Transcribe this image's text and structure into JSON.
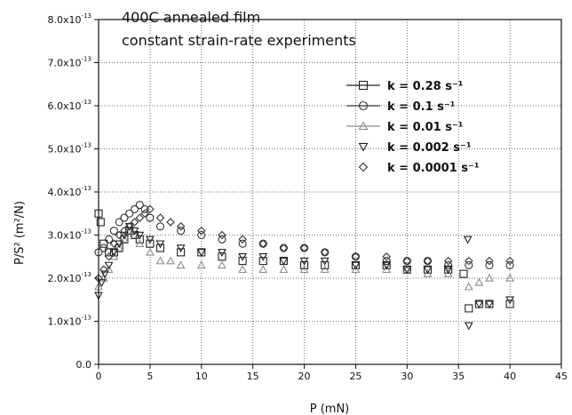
{
  "chart_data": {
    "type": "scatter",
    "title": "400C annealed film",
    "subtitle": "constant strain-rate experiments",
    "xlabel": "P (mN)",
    "ylabel": "P/S² (m²/N)",
    "xlim": [
      0,
      45
    ],
    "ylim": [
      0,
      8e-13
    ],
    "grid": true,
    "legend_position": "top-right",
    "x_ticks": [
      {
        "value": 0,
        "label": "0"
      },
      {
        "value": 5,
        "label": "5"
      },
      {
        "value": 10,
        "label": "10"
      },
      {
        "value": 15,
        "label": "15"
      },
      {
        "value": 20,
        "label": "20"
      },
      {
        "value": 25,
        "label": "25"
      },
      {
        "value": 30,
        "label": "30"
      },
      {
        "value": 35,
        "label": "35"
      },
      {
        "value": 40,
        "label": "40"
      },
      {
        "value": 45,
        "label": "45"
      }
    ],
    "y_ticks": [
      {
        "value": 0,
        "mantissa": "0.0",
        "exp": ""
      },
      {
        "value": 1e-13,
        "mantissa": "1.0x10",
        "exp": "-13"
      },
      {
        "value": 2e-13,
        "mantissa": "2.0x10",
        "exp": "-13"
      },
      {
        "value": 3e-13,
        "mantissa": "3.0x10",
        "exp": "-13"
      },
      {
        "value": 4e-13,
        "mantissa": "4.0x10",
        "exp": "-13"
      },
      {
        "value": 5e-13,
        "mantissa": "5.0x10",
        "exp": "-13"
      },
      {
        "value": 6e-13,
        "mantissa": "6.0x10",
        "exp": "-13"
      },
      {
        "value": 7e-13,
        "mantissa": "7.0x10",
        "exp": "-13"
      },
      {
        "value": 8e-13,
        "mantissa": "8.0x10",
        "exp": "-13"
      }
    ],
    "series": [
      {
        "name": "k = 0.28 s⁻¹",
        "marker": "square",
        "color": "#222222",
        "x": [
          0.0,
          0.2,
          0.5,
          1.0,
          1.5,
          2.0,
          2.5,
          3.0,
          3.5,
          4.0,
          5.0,
          6.0,
          8.0,
          10.0,
          12.0,
          14.0,
          16.0,
          18.0,
          20.0,
          22.0,
          25.0,
          28.0,
          30.0,
          32.0,
          34.0,
          35.5,
          36.0,
          37.0,
          38.0,
          40.0
        ],
        "y": [
          3.5e-13,
          3.3e-13,
          2.8e-13,
          2.6e-13,
          2.6e-13,
          2.7e-13,
          2.9e-13,
          3.1e-13,
          3e-13,
          2.9e-13,
          2.8e-13,
          2.7e-13,
          2.6e-13,
          2.6e-13,
          2.5e-13,
          2.4e-13,
          2.4e-13,
          2.4e-13,
          2.3e-13,
          2.3e-13,
          2.3e-13,
          2.3e-13,
          2.2e-13,
          2.2e-13,
          2.2e-13,
          2.1e-13,
          1.3e-13,
          1.4e-13,
          1.4e-13,
          1.4e-13
        ]
      },
      {
        "name": "k = 0.1 s⁻¹",
        "marker": "circle",
        "color": "#333333",
        "x": [
          0.0,
          0.5,
          1.0,
          1.5,
          2.0,
          2.5,
          3.0,
          3.5,
          4.0,
          4.5,
          5.0,
          6.0,
          8.0,
          10.0,
          12.0,
          14.0,
          16.0,
          18.0,
          20.0,
          22.0,
          25.0,
          28.0,
          30.0,
          32.0,
          34.0,
          36.0,
          38.0,
          40.0
        ],
        "y": [
          2.6e-13,
          2.7e-13,
          2.9e-13,
          3.1e-13,
          3.3e-13,
          3.4e-13,
          3.5e-13,
          3.6e-13,
          3.7e-13,
          3.6e-13,
          3.4e-13,
          3.2e-13,
          3.1e-13,
          3e-13,
          2.9e-13,
          2.8e-13,
          2.8e-13,
          2.7e-13,
          2.7e-13,
          2.6e-13,
          2.5e-13,
          2.4e-13,
          2.4e-13,
          2.4e-13,
          2.3e-13,
          2.3e-13,
          2.3e-13,
          2.3e-13
        ]
      },
      {
        "name": "k = 0.01 s⁻¹",
        "marker": "triangle-up",
        "color": "#8c8c8c",
        "x": [
          0.0,
          0.5,
          1.0,
          1.5,
          2.0,
          2.5,
          3.0,
          3.5,
          4.0,
          5.0,
          6.0,
          7.0,
          8.0,
          10.0,
          12.0,
          14.0,
          16.0,
          18.0,
          20.0,
          22.0,
          25.0,
          28.0,
          30.0,
          32.0,
          34.0,
          36.0,
          37.0,
          38.0,
          40.0
        ],
        "y": [
          1.8e-13,
          2e-13,
          2.2e-13,
          2.5e-13,
          2.7e-13,
          2.9e-13,
          3.1e-13,
          3e-13,
          2.8e-13,
          2.6e-13,
          2.4e-13,
          2.4e-13,
          2.3e-13,
          2.3e-13,
          2.3e-13,
          2.2e-13,
          2.2e-13,
          2.2e-13,
          2.2e-13,
          2.2e-13,
          2.2e-13,
          2.2e-13,
          2.2e-13,
          2.1e-13,
          2.1e-13,
          1.8e-13,
          1.9e-13,
          2e-13,
          2e-13
        ]
      },
      {
        "name": "k = 0.002 s⁻¹",
        "marker": "triangle-down",
        "color": "#222222",
        "x": [
          0.0,
          0.3,
          0.6,
          1.0,
          1.5,
          2.0,
          2.5,
          3.0,
          3.5,
          4.0,
          5.0,
          6.0,
          8.0,
          10.0,
          12.0,
          14.0,
          16.0,
          18.0,
          20.0,
          22.0,
          25.0,
          28.0,
          30.0,
          32.0,
          34.0,
          35.9,
          36.0,
          37.0,
          38.0,
          40.0
        ],
        "y": [
          1.6e-13,
          1.9e-13,
          2.1e-13,
          2.3e-13,
          2.6e-13,
          2.8e-13,
          3e-13,
          3.2e-13,
          3.1e-13,
          3e-13,
          2.9e-13,
          2.8e-13,
          2.7e-13,
          2.6e-13,
          2.6e-13,
          2.5e-13,
          2.5e-13,
          2.4e-13,
          2.4e-13,
          2.4e-13,
          2.3e-13,
          2.3e-13,
          2.2e-13,
          2.2e-13,
          2.2e-13,
          2.9e-13,
          9e-14,
          1.4e-13,
          1.4e-13,
          1.5e-13
        ]
      },
      {
        "name": "k = 0.0001 s⁻¹",
        "marker": "diamond",
        "color": "#333333",
        "x": [
          0.0,
          0.5,
          1.0,
          1.5,
          2.0,
          2.5,
          3.0,
          3.5,
          4.0,
          4.5,
          5.0,
          6.0,
          7.0,
          8.0,
          10.0,
          12.0,
          14.0,
          16.0,
          18.0,
          20.0,
          22.0,
          25.0,
          28.0,
          30.0,
          32.0,
          34.0,
          36.0,
          38.0,
          40.0
        ],
        "y": [
          2e-13,
          2.2e-13,
          2.5e-13,
          2.8e-13,
          3e-13,
          3.1e-13,
          3.2e-13,
          3.3e-13,
          3.4e-13,
          3.5e-13,
          3.6e-13,
          3.4e-13,
          3.3e-13,
          3.2e-13,
          3.1e-13,
          3e-13,
          2.9e-13,
          2.8e-13,
          2.7e-13,
          2.7e-13,
          2.6e-13,
          2.5e-13,
          2.5e-13,
          2.4e-13,
          2.4e-13,
          2.4e-13,
          2.4e-13,
          2.4e-13,
          2.4e-13
        ]
      }
    ]
  }
}
